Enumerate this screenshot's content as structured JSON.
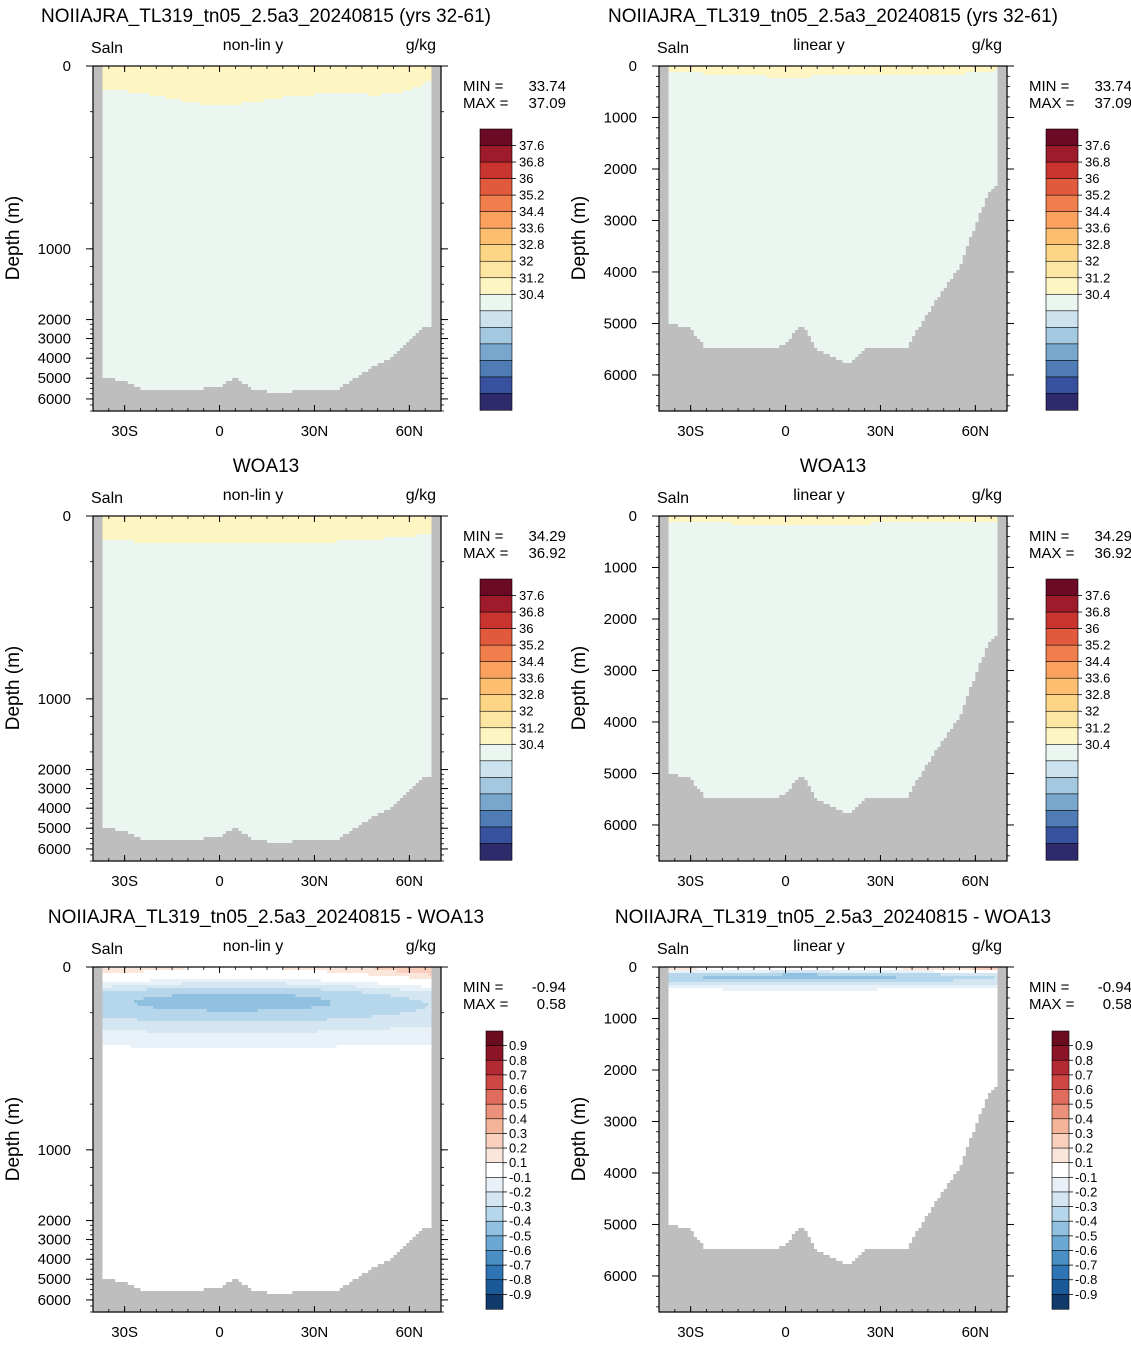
{
  "colorbar_colors": {
    "salinity": [
      "#2e2a6b",
      "#37519f",
      "#4f7cb5",
      "#78a6cc",
      "#a4c8e0",
      "#cce3ef",
      "#ebf6f0",
      "#fef6c2",
      "#fde6a1",
      "#fdd587",
      "#fcbf70",
      "#f9a15d",
      "#f07d4c",
      "#e25a3d",
      "#c9342f",
      "#9e1b2b",
      "#6b0a24"
    ],
    "difference": [
      "#0f3a6a",
      "#1b5a98",
      "#2f74b4",
      "#4a8fc4",
      "#6ba8d3",
      "#90c1e0",
      "#b5d6eb",
      "#d3e6f2",
      "#e9f1f8",
      "#ffffff",
      "#fbe6dc",
      "#f8d0bd",
      "#f3b49a",
      "#ec917b",
      "#e06c5d",
      "#cf4745",
      "#b42a34",
      "#8d1426",
      "#6a0b20"
    ],
    "land": "#bebebe"
  },
  "panels": [
    {
      "title": "NOIIAJRA_TL319_tn05_2.5a3_20240815 (yrs 32-61)",
      "variable": "Saln",
      "mode": "non-lin y",
      "units": "g/kg",
      "min_label": "MIN =",
      "min_value": "33.74",
      "max_label": "MAX =",
      "max_value": "37.09",
      "ylabel": "Depth (m)",
      "y_ticks": [
        "0",
        "1000",
        "2000",
        "3000",
        "4000",
        "5000",
        "6000"
      ],
      "x_ticks": [
        "30S",
        "0",
        "30N",
        "60N"
      ],
      "colorbar_labels": [
        "37.6",
        "36.8",
        "36",
        "35.2",
        "34.4",
        "33.6",
        "32.8",
        "32",
        "31.2",
        "30.4"
      ],
      "chart_data": {
        "type": "heatmap",
        "field": "salinity",
        "x": "latitude",
        "xlim": [
          -40,
          70
        ],
        "x_tick_values": [
          -30,
          0,
          30,
          60
        ],
        "y": "depth",
        "ylim": [
          0,
          6500
        ],
        "y_scale": "non-linear",
        "y_tick_values": [
          0,
          1000,
          2000,
          3000,
          4000,
          5000,
          6000
        ],
        "min": 33.74,
        "max": 37.09,
        "color_levels": [
          30.4,
          31.2,
          32,
          32.8,
          33.6,
          34.4,
          35.2,
          36,
          36.8,
          37.6
        ]
      }
    },
    {
      "title": "NOIIAJRA_TL319_tn05_2.5a3_20240815 (yrs 32-61)",
      "variable": "Saln",
      "mode": "linear y",
      "units": "g/kg",
      "min_label": "MIN =",
      "min_value": "33.74",
      "max_label": "MAX =",
      "max_value": "37.09",
      "ylabel": "Depth (m)",
      "y_ticks": [
        "0",
        "1000",
        "2000",
        "3000",
        "4000",
        "5000",
        "6000"
      ],
      "x_ticks": [
        "30S",
        "0",
        "30N",
        "60N"
      ],
      "colorbar_labels": [
        "37.6",
        "36.8",
        "36",
        "35.2",
        "34.4",
        "33.6",
        "32.8",
        "32",
        "31.2",
        "30.4"
      ],
      "chart_data": {
        "type": "heatmap",
        "field": "salinity",
        "x": "latitude",
        "xlim": [
          -40,
          70
        ],
        "x_tick_values": [
          -30,
          0,
          30,
          60
        ],
        "y": "depth",
        "ylim": [
          0,
          6700
        ],
        "y_scale": "linear",
        "y_tick_values": [
          0,
          1000,
          2000,
          3000,
          4000,
          5000,
          6000
        ],
        "min": 33.74,
        "max": 37.09,
        "color_levels": [
          30.4,
          31.2,
          32,
          32.8,
          33.6,
          34.4,
          35.2,
          36,
          36.8,
          37.6
        ]
      }
    },
    {
      "title": "WOA13",
      "variable": "Saln",
      "mode": "non-lin y",
      "units": "g/kg",
      "min_label": "MIN =",
      "min_value": "34.29",
      "max_label": "MAX =",
      "max_value": "36.92",
      "ylabel": "Depth (m)",
      "y_ticks": [
        "0",
        "1000",
        "2000",
        "3000",
        "4000",
        "5000",
        "6000"
      ],
      "x_ticks": [
        "30S",
        "0",
        "30N",
        "60N"
      ],
      "colorbar_labels": [
        "37.6",
        "36.8",
        "36",
        "35.2",
        "34.4",
        "33.6",
        "32.8",
        "32",
        "31.2",
        "30.4"
      ],
      "chart_data": {
        "type": "heatmap",
        "field": "salinity",
        "x": "latitude",
        "xlim": [
          -40,
          70
        ],
        "x_tick_values": [
          -30,
          0,
          30,
          60
        ],
        "y": "depth",
        "ylim": [
          0,
          6500
        ],
        "y_scale": "non-linear",
        "y_tick_values": [
          0,
          1000,
          2000,
          3000,
          4000,
          5000,
          6000
        ],
        "min": 34.29,
        "max": 36.92,
        "color_levels": [
          30.4,
          31.2,
          32,
          32.8,
          33.6,
          34.4,
          35.2,
          36,
          36.8,
          37.6
        ]
      }
    },
    {
      "title": "WOA13",
      "variable": "Saln",
      "mode": "linear y",
      "units": "g/kg",
      "min_label": "MIN =",
      "min_value": "34.29",
      "max_label": "MAX =",
      "max_value": "36.92",
      "ylabel": "Depth (m)",
      "y_ticks": [
        "0",
        "1000",
        "2000",
        "3000",
        "4000",
        "5000",
        "6000"
      ],
      "x_ticks": [
        "30S",
        "0",
        "30N",
        "60N"
      ],
      "colorbar_labels": [
        "37.6",
        "36.8",
        "36",
        "35.2",
        "34.4",
        "33.6",
        "32.8",
        "32",
        "31.2",
        "30.4"
      ],
      "chart_data": {
        "type": "heatmap",
        "field": "salinity",
        "x": "latitude",
        "xlim": [
          -40,
          70
        ],
        "x_tick_values": [
          -30,
          0,
          30,
          60
        ],
        "y": "depth",
        "ylim": [
          0,
          6700
        ],
        "y_scale": "linear",
        "y_tick_values": [
          0,
          1000,
          2000,
          3000,
          4000,
          5000,
          6000
        ],
        "min": 34.29,
        "max": 36.92,
        "color_levels": [
          30.4,
          31.2,
          32,
          32.8,
          33.6,
          34.4,
          35.2,
          36,
          36.8,
          37.6
        ]
      }
    },
    {
      "title": "NOIIAJRA_TL319_tn05_2.5a3_20240815 - WOA13",
      "variable": "Saln",
      "mode": "non-lin y",
      "units": "g/kg",
      "min_label": "MIN =",
      "min_value": "-0.94",
      "max_label": "MAX =",
      "max_value": "0.58",
      "ylabel": "Depth (m)",
      "y_ticks": [
        "0",
        "1000",
        "2000",
        "3000",
        "4000",
        "5000",
        "6000"
      ],
      "x_ticks": [
        "30S",
        "0",
        "30N",
        "60N"
      ],
      "colorbar_labels": [
        "0.9",
        "0.8",
        "0.7",
        "0.6",
        "0.5",
        "0.4",
        "0.3",
        "0.2",
        "0.1",
        "-0.1",
        "-0.2",
        "-0.3",
        "-0.4",
        "-0.5",
        "-0.6",
        "-0.7",
        "-0.8",
        "-0.9"
      ],
      "chart_data": {
        "type": "heatmap",
        "field": "difference",
        "x": "latitude",
        "xlim": [
          -40,
          70
        ],
        "x_tick_values": [
          -30,
          0,
          30,
          60
        ],
        "y": "depth",
        "ylim": [
          0,
          6500
        ],
        "y_scale": "non-linear",
        "y_tick_values": [
          0,
          1000,
          2000,
          3000,
          4000,
          5000,
          6000
        ],
        "min": -0.94,
        "max": 0.58,
        "color_levels": [
          -0.9,
          -0.8,
          -0.7,
          -0.6,
          -0.5,
          -0.4,
          -0.3,
          -0.2,
          -0.1,
          0.1,
          0.2,
          0.3,
          0.4,
          0.5,
          0.6,
          0.7,
          0.8,
          0.9
        ]
      }
    },
    {
      "title": "NOIIAJRA_TL319_tn05_2.5a3_20240815 - WOA13",
      "variable": "Saln",
      "mode": "linear y",
      "units": "g/kg",
      "min_label": "MIN =",
      "min_value": "-0.94",
      "max_label": "MAX =",
      "max_value": "0.58",
      "ylabel": "Depth (m)",
      "y_ticks": [
        "0",
        "1000",
        "2000",
        "3000",
        "4000",
        "5000",
        "6000"
      ],
      "x_ticks": [
        "30S",
        "0",
        "30N",
        "60N"
      ],
      "colorbar_labels": [
        "0.9",
        "0.8",
        "0.7",
        "0.6",
        "0.5",
        "0.4",
        "0.3",
        "0.2",
        "0.1",
        "-0.1",
        "-0.2",
        "-0.3",
        "-0.4",
        "-0.5",
        "-0.6",
        "-0.7",
        "-0.8",
        "-0.9"
      ],
      "chart_data": {
        "type": "heatmap",
        "field": "difference",
        "x": "latitude",
        "xlim": [
          -40,
          70
        ],
        "x_tick_values": [
          -30,
          0,
          30,
          60
        ],
        "y": "depth",
        "ylim": [
          0,
          6700
        ],
        "y_scale": "linear",
        "y_tick_values": [
          0,
          1000,
          2000,
          3000,
          4000,
          5000,
          6000
        ],
        "min": -0.94,
        "max": 0.58,
        "color_levels": [
          -0.9,
          -0.8,
          -0.7,
          -0.6,
          -0.5,
          -0.4,
          -0.3,
          -0.2,
          -0.1,
          0.1,
          0.2,
          0.3,
          0.4,
          0.5,
          0.6,
          0.7,
          0.8,
          0.9
        ]
      }
    }
  ]
}
